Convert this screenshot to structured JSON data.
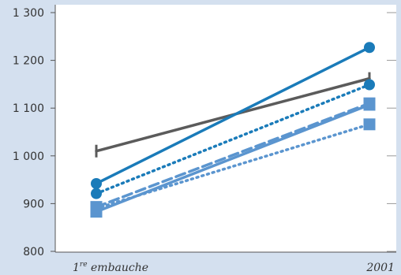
{
  "chart_data": {
    "type": "line",
    "title": "",
    "xlabel": "",
    "ylabel": "",
    "categories": [
      "1re embauche",
      "2001"
    ],
    "category_labels": [
      {
        "main": "1",
        "sup": "re",
        "rest": " embauche"
      },
      {
        "main": "2001",
        "sup": "",
        "rest": ""
      }
    ],
    "ylim": [
      780,
      1330
    ],
    "yticks": [
      800,
      900,
      1000,
      1100,
      1200,
      1300
    ],
    "ytick_labels": [
      "800",
      "900",
      "1 000",
      "1 100",
      "1 200",
      "1 300"
    ],
    "grid": false,
    "series": [
      {
        "values": [
          1010,
          1162
        ],
        "color": "#5b5b5b",
        "dash": "solid",
        "marker": "tbar"
      },
      {
        "values": [
          942,
          1227
        ],
        "color": "#1a7bb9",
        "dash": "solid",
        "marker": "circle"
      },
      {
        "values": [
          921,
          1149
        ],
        "color": "#1a7bb9",
        "dash": "dot",
        "marker": "circle"
      },
      {
        "values": [
          893,
          1110
        ],
        "color": "#5b95cf",
        "dash": "dash",
        "marker": "square"
      },
      {
        "values": [
          883,
          1107
        ],
        "color": "#5b95cf",
        "dash": "solid",
        "marker": "square"
      },
      {
        "values": [
          890,
          1066
        ],
        "color": "#5b95cf",
        "dash": "dot",
        "marker": "square"
      }
    ]
  }
}
